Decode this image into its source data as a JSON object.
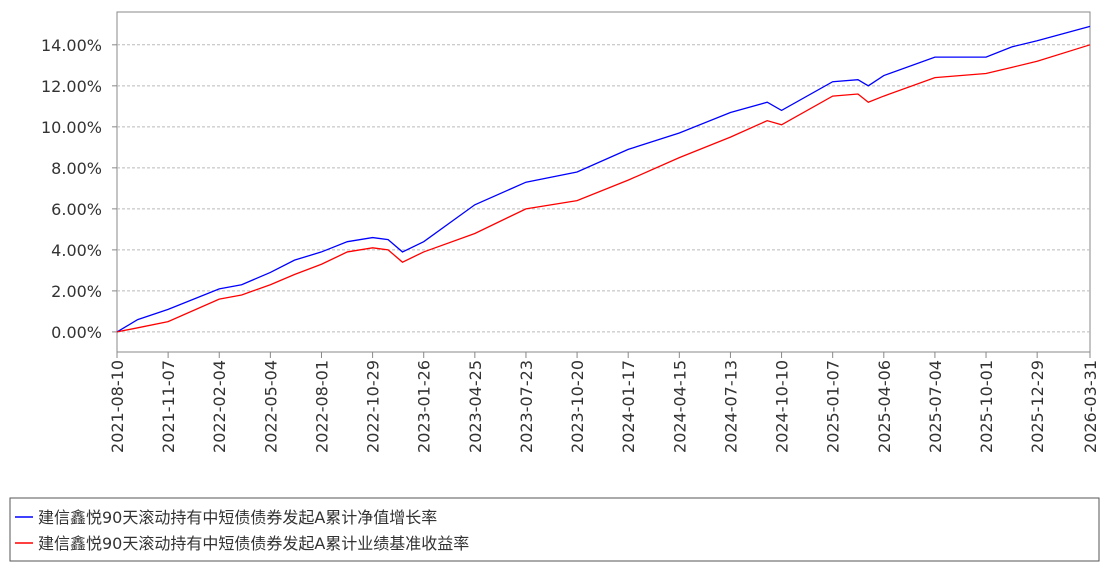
{
  "chart_data": {
    "type": "line",
    "x": [
      "2021-08-10",
      "2021-09-15",
      "2021-11-07",
      "2022-02-04",
      "2022-03-15",
      "2022-05-04",
      "2022-06-15",
      "2022-08-01",
      "2022-09-15",
      "2022-10-29",
      "2022-11-25",
      "2022-12-20",
      "2023-01-26",
      "2023-04-25",
      "2023-07-23",
      "2023-10-20",
      "2024-01-17",
      "2024-04-15",
      "2024-07-13",
      "2024-09-15",
      "2024-10-10",
      "2025-01-07",
      "2025-02-20",
      "2025-03-10",
      "2025-04-06",
      "2025-07-04",
      "2025-10-01",
      "2025-11-15",
      "2025-12-29",
      "2026-03-31"
    ],
    "series": [
      {
        "name": "建信鑫悦90天滚动持有中短债债券发起A累计净值增长率",
        "color": "#0000ff",
        "values": [
          0,
          0.6,
          1.1,
          2.1,
          2.3,
          2.9,
          3.5,
          3.9,
          4.4,
          4.6,
          4.5,
          3.9,
          4.4,
          6.2,
          7.3,
          7.8,
          8.9,
          9.7,
          10.7,
          11.2,
          10.8,
          12.2,
          12.3,
          12.0,
          12.5,
          13.4,
          13.4,
          13.9,
          14.2,
          14.9
        ]
      },
      {
        "name": "建信鑫悦90天滚动持有中短债债券发起A累计业绩基准收益率",
        "color": "#ff0000",
        "values": [
          0,
          0.2,
          0.5,
          1.6,
          1.8,
          2.3,
          2.8,
          3.3,
          3.9,
          4.1,
          4.0,
          3.4,
          3.9,
          4.8,
          6.0,
          6.4,
          7.4,
          8.5,
          9.5,
          10.3,
          10.1,
          11.5,
          11.6,
          11.2,
          11.5,
          12.4,
          12.6,
          12.9,
          13.2,
          14.0
        ]
      }
    ],
    "xlim": [
      "2021-08-10",
      "2026-03-31"
    ],
    "xticks": [
      "2021-08-10",
      "2021-11-07",
      "2022-02-04",
      "2022-05-04",
      "2022-08-01",
      "2022-10-29",
      "2023-01-26",
      "2023-04-25",
      "2023-07-23",
      "2023-10-20",
      "2024-01-17",
      "2024-04-15",
      "2024-07-13",
      "2024-10-10",
      "2025-01-07",
      "2025-04-06",
      "2025-07-04",
      "2025-10-01",
      "2025-12-29",
      "2026-03-31"
    ],
    "ylim": [
      -0.98,
      15.6
    ],
    "yticks": [
      {
        "value": 0,
        "label": "0.00%"
      },
      {
        "value": 2,
        "label": "2.00%"
      },
      {
        "value": 4,
        "label": "4.00%"
      },
      {
        "value": 6,
        "label": "6.00%"
      },
      {
        "value": 8,
        "label": "8.00%"
      },
      {
        "value": 10,
        "label": "10.00%"
      },
      {
        "value": 12,
        "label": "12.00%"
      },
      {
        "value": 14,
        "label": "14.00%"
      }
    ],
    "grid": true
  }
}
